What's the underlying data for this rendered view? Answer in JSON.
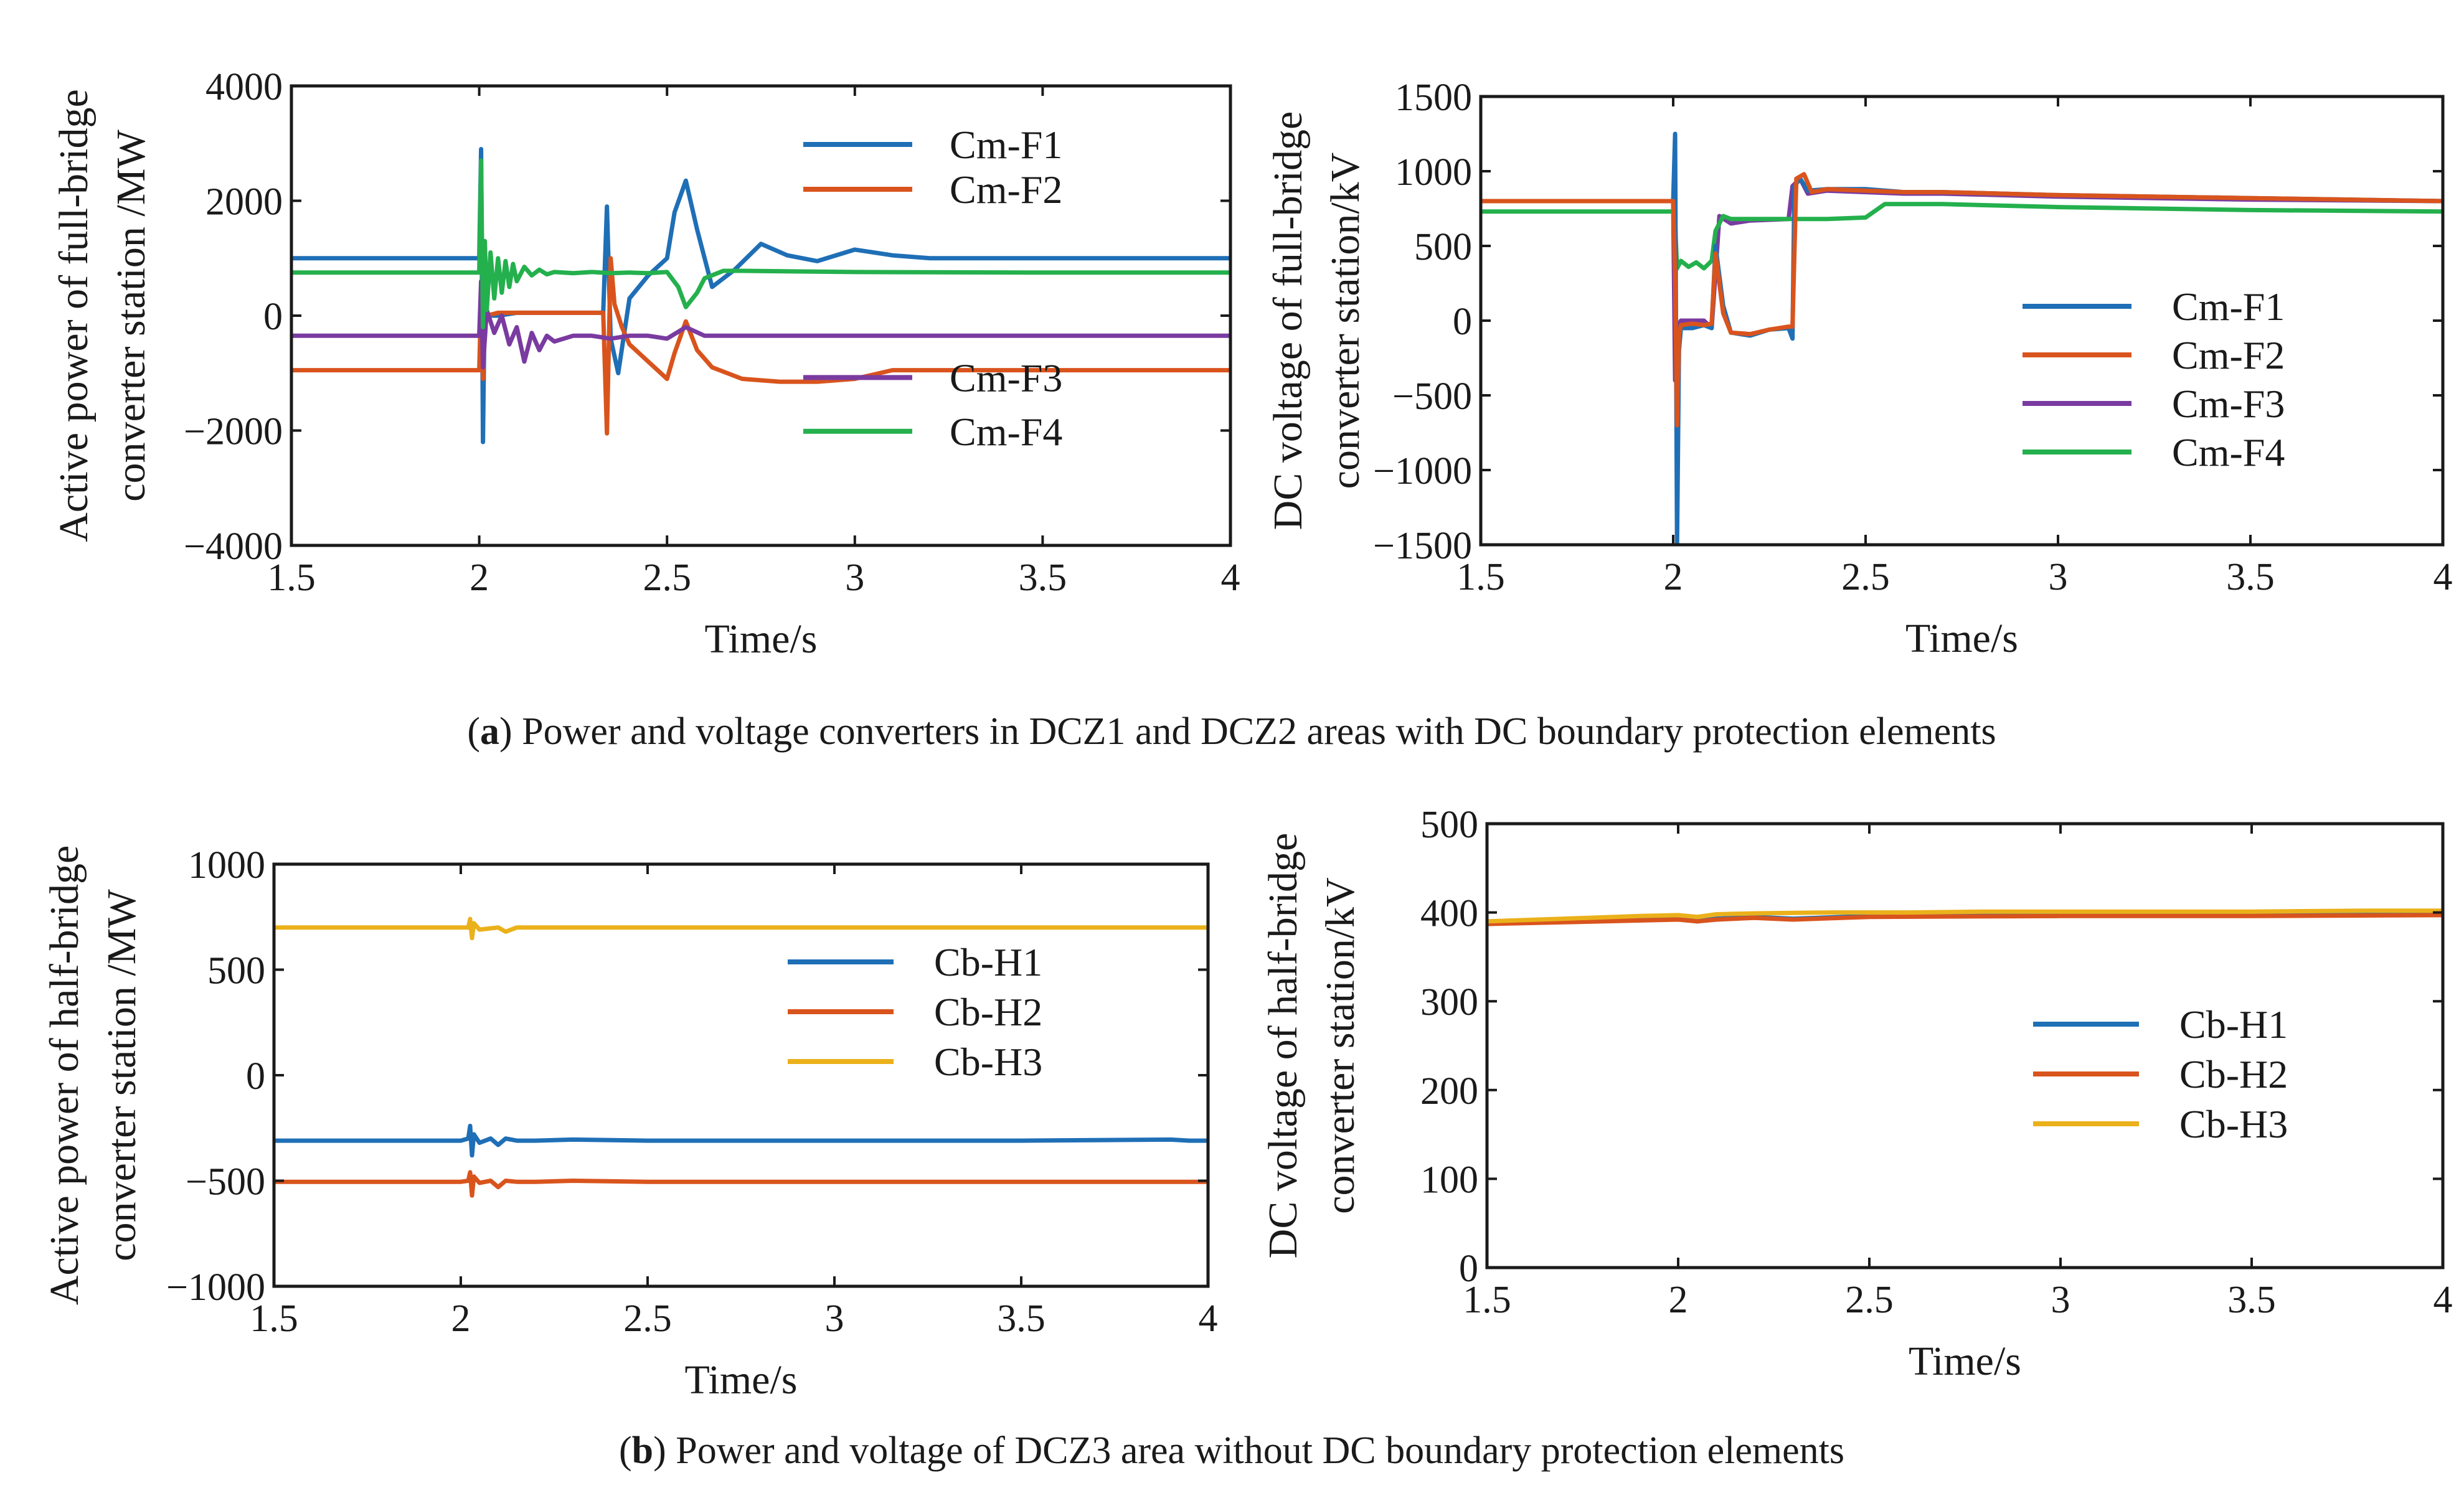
{
  "captions": {
    "a_letter": "a",
    "a_text": " Power and voltage converters in DCZ1 and DCZ2 areas with DC boundary protection elements",
    "b_letter": "b",
    "b_text": " Power and voltage of DCZ3 area without DC boundary protection elements"
  },
  "colors": {
    "blue": "#1f6fb6",
    "orange": "#d9541d",
    "yellow": "#ebb11b",
    "purple": "#7a3ba0",
    "green": "#24b04d"
  },
  "chart_data": [
    {
      "id": "a-left",
      "type": "line",
      "xlabel": "Time/s",
      "ylabel_line1": "Active power of full-bridge",
      "ylabel_line2": "converter station /MW",
      "xlim": [
        1.5,
        4
      ],
      "ylim": [
        -4000,
        4000
      ],
      "xticks": [
        "1.5",
        "2",
        "2.5",
        "3",
        "3.5",
        "4"
      ],
      "xtick_values": [
        1.5,
        2,
        2.5,
        3,
        3.5,
        4
      ],
      "yticks": [
        "−4000",
        "−2000",
        "0",
        "2000",
        "4000"
      ],
      "ytick_values": [
        -4000,
        -2000,
        0,
        2000,
        4000
      ],
      "legend": [
        {
          "label": "Cm-F1",
          "color": "#1f6fb6"
        },
        {
          "label": "Cm-F2",
          "color": "#d9541d"
        },
        {
          "label": "Cm-F3",
          "color": "#7a3ba0"
        },
        {
          "label": "Cm-F4",
          "color": "#24b04d"
        }
      ],
      "series": [
        {
          "name": "Cm-F1",
          "color": "#1f6fb6",
          "x": [
            1.5,
            2.0,
            2.005,
            2.01,
            2.015,
            2.02,
            2.05,
            2.1,
            2.2,
            2.3,
            2.33,
            2.34,
            2.35,
            2.37,
            2.4,
            2.45,
            2.5,
            2.52,
            2.55,
            2.58,
            2.62,
            2.68,
            2.75,
            2.82,
            2.9,
            3.0,
            3.1,
            3.2,
            3.5,
            4.0
          ],
          "y": [
            1000,
            1000,
            2900,
            -2200,
            500,
            0,
            0,
            50,
            50,
            50,
            50,
            1900,
            -400,
            -1000,
            300,
            700,
            1000,
            1800,
            2350,
            1500,
            500,
            800,
            1250,
            1050,
            950,
            1150,
            1050,
            1000,
            1000,
            1000
          ]
        },
        {
          "name": "Cm-F2",
          "color": "#d9541d",
          "x": [
            1.5,
            2.0,
            2.005,
            2.01,
            2.015,
            2.02,
            2.05,
            2.1,
            2.2,
            2.3,
            2.33,
            2.34,
            2.35,
            2.36,
            2.38,
            2.4,
            2.45,
            2.5,
            2.52,
            2.55,
            2.58,
            2.62,
            2.7,
            2.8,
            2.9,
            3.0,
            3.1,
            3.5,
            4.0
          ],
          "y": [
            -950,
            -950,
            300,
            -1100,
            400,
            0,
            50,
            50,
            50,
            50,
            50,
            -2050,
            1000,
            200,
            -200,
            -500,
            -800,
            -1100,
            -650,
            -100,
            -600,
            -900,
            -1100,
            -1150,
            -1150,
            -1100,
            -950,
            -950,
            -950
          ]
        },
        {
          "name": "Cm-F3",
          "color": "#7a3ba0",
          "x": [
            1.5,
            2.0,
            2.005,
            2.01,
            2.02,
            2.04,
            2.06,
            2.08,
            2.1,
            2.12,
            2.14,
            2.16,
            2.18,
            2.2,
            2.25,
            2.3,
            2.35,
            2.4,
            2.45,
            2.5,
            2.55,
            2.6,
            2.7,
            3.0,
            3.5,
            4.0
          ],
          "y": [
            -350,
            -350,
            600,
            -900,
            100,
            -300,
            0,
            -500,
            -200,
            -800,
            -300,
            -600,
            -350,
            -450,
            -350,
            -350,
            -400,
            -350,
            -350,
            -400,
            -200,
            -350,
            -350,
            -350,
            -350,
            -350
          ]
        },
        {
          "name": "Cm-F4",
          "color": "#24b04d",
          "x": [
            1.5,
            2.0,
            2.005,
            2.01,
            2.015,
            2.02,
            2.03,
            2.04,
            2.05,
            2.06,
            2.07,
            2.08,
            2.09,
            2.1,
            2.12,
            2.14,
            2.16,
            2.18,
            2.2,
            2.25,
            2.3,
            2.35,
            2.4,
            2.45,
            2.5,
            2.53,
            2.55,
            2.58,
            2.6,
            2.65,
            2.7,
            3.0,
            3.5,
            4.0
          ],
          "y": [
            750,
            750,
            2700,
            -200,
            1300,
            100,
            1100,
            300,
            1000,
            400,
            950,
            500,
            900,
            600,
            850,
            700,
            800,
            720,
            760,
            740,
            760,
            740,
            750,
            740,
            760,
            500,
            150,
            400,
            650,
            780,
            780,
            760,
            750,
            750
          ]
        }
      ]
    },
    {
      "id": "a-right",
      "type": "line",
      "xlabel": "Time/s",
      "ylabel_line1": "DC voltage of full-bridge",
      "ylabel_line2": "converter station/kV",
      "xlim": [
        1.5,
        4
      ],
      "ylim": [
        -1500,
        1500
      ],
      "xticks": [
        "1.5",
        "2",
        "2.5",
        "3",
        "3.5",
        "4"
      ],
      "xtick_values": [
        1.5,
        2,
        2.5,
        3,
        3.5,
        4
      ],
      "yticks": [
        "−1500",
        "−1000",
        "−500",
        "0",
        "500",
        "1000",
        "1500"
      ],
      "ytick_values": [
        -1500,
        -1000,
        -500,
        0,
        500,
        1000,
        1500
      ],
      "legend": [
        {
          "label": "Cm-F1",
          "color": "#1f6fb6"
        },
        {
          "label": "Cm-F2",
          "color": "#d9541d"
        },
        {
          "label": "Cm-F3",
          "color": "#7a3ba0"
        },
        {
          "label": "Cm-F4",
          "color": "#24b04d"
        }
      ],
      "series": [
        {
          "name": "Cm-F3",
          "color": "#7a3ba0",
          "x": [
            1.5,
            2.0,
            2.005,
            2.01,
            2.02,
            2.05,
            2.08,
            2.1,
            2.12,
            2.15,
            2.2,
            2.3,
            2.31,
            2.33,
            2.35,
            2.4,
            2.5,
            2.6,
            2.7,
            3.0,
            3.5,
            4.0
          ],
          "y": [
            800,
            800,
            -400,
            -50,
            0,
            0,
            0,
            -50,
            700,
            650,
            670,
            680,
            900,
            950,
            850,
            870,
            860,
            850,
            850,
            830,
            810,
            800
          ]
        },
        {
          "name": "Cm-F4",
          "color": "#24b04d",
          "x": [
            1.5,
            2.0,
            2.005,
            2.01,
            2.02,
            2.04,
            2.06,
            2.08,
            2.1,
            2.11,
            2.13,
            2.15,
            2.2,
            2.3,
            2.4,
            2.5,
            2.55,
            2.6,
            2.7,
            3.0,
            3.5,
            4.0
          ],
          "y": [
            730,
            730,
            650,
            350,
            400,
            360,
            390,
            350,
            400,
            600,
            700,
            680,
            680,
            680,
            680,
            690,
            780,
            780,
            780,
            760,
            740,
            730
          ]
        },
        {
          "name": "Cm-F1",
          "color": "#1f6fb6",
          "x": [
            1.5,
            2.0,
            2.005,
            2.01,
            2.015,
            2.02,
            2.05,
            2.08,
            2.1,
            2.11,
            2.13,
            2.15,
            2.2,
            2.25,
            2.3,
            2.31,
            2.315,
            2.33,
            2.35,
            2.4,
            2.5,
            2.6,
            2.7,
            3.0,
            3.5,
            4.0
          ],
          "y": [
            800,
            800,
            1250,
            -1500,
            -200,
            -50,
            -50,
            -30,
            -50,
            500,
            100,
            -80,
            -100,
            -60,
            -50,
            -120,
            900,
            950,
            870,
            880,
            880,
            860,
            860,
            840,
            820,
            800
          ]
        },
        {
          "name": "Cm-F2",
          "color": "#d9541d",
          "x": [
            1.5,
            2.0,
            2.005,
            2.01,
            2.015,
            2.02,
            2.05,
            2.08,
            2.1,
            2.11,
            2.13,
            2.15,
            2.2,
            2.25,
            2.3,
            2.31,
            2.32,
            2.34,
            2.36,
            2.4,
            2.5,
            2.6,
            2.7,
            3.0,
            3.5,
            4.0
          ],
          "y": [
            800,
            800,
            300,
            -700,
            -100,
            -30,
            -20,
            -30,
            -20,
            450,
            50,
            -80,
            -90,
            -60,
            -40,
            -40,
            950,
            980,
            860,
            880,
            870,
            860,
            860,
            840,
            820,
            800
          ]
        }
      ]
    },
    {
      "id": "b-left",
      "type": "line",
      "xlabel": "Time/s",
      "ylabel_line1": "Active power of half-bridge",
      "ylabel_line2": "converter station /MW",
      "xlim": [
        1.5,
        4
      ],
      "ylim": [
        -1000,
        1000
      ],
      "xticks": [
        "1.5",
        "2",
        "2.5",
        "3",
        "3.5",
        "4"
      ],
      "xtick_values": [
        1.5,
        2,
        2.5,
        3,
        3.5,
        4
      ],
      "yticks": [
        "−1000",
        "−500",
        "0",
        "500",
        "1000"
      ],
      "ytick_values": [
        -1000,
        -500,
        0,
        500,
        1000
      ],
      "legend": [
        {
          "label": "Cb-H1",
          "color": "#1f6fb6"
        },
        {
          "label": "Cb-H2",
          "color": "#d9541d"
        },
        {
          "label": "Cb-H3",
          "color": "#ebb11b"
        }
      ],
      "series": [
        {
          "name": "Cb-H3",
          "color": "#ebb11b",
          "x": [
            1.5,
            2.0,
            2.02,
            2.025,
            2.03,
            2.035,
            2.05,
            2.1,
            2.12,
            2.15,
            2.5,
            3.0,
            3.5,
            4.0
          ],
          "y": [
            700,
            700,
            700,
            740,
            650,
            720,
            690,
            700,
            680,
            700,
            700,
            700,
            700,
            700
          ]
        },
        {
          "name": "Cb-H1",
          "color": "#1f6fb6",
          "x": [
            1.5,
            2.0,
            2.02,
            2.025,
            2.03,
            2.035,
            2.05,
            2.08,
            2.1,
            2.12,
            2.15,
            2.2,
            2.3,
            2.5,
            3.0,
            3.5,
            3.9,
            3.95,
            4.0
          ],
          "y": [
            -310,
            -310,
            -300,
            -240,
            -380,
            -280,
            -320,
            -300,
            -330,
            -300,
            -310,
            -310,
            -305,
            -310,
            -310,
            -310,
            -305,
            -310,
            -310
          ]
        },
        {
          "name": "Cb-H2",
          "color": "#d9541d",
          "x": [
            1.5,
            2.0,
            2.02,
            2.025,
            2.03,
            2.035,
            2.05,
            2.08,
            2.1,
            2.12,
            2.15,
            2.2,
            2.3,
            2.5,
            3.0,
            3.5,
            4.0
          ],
          "y": [
            -505,
            -505,
            -500,
            -460,
            -570,
            -480,
            -510,
            -500,
            -530,
            -500,
            -505,
            -505,
            -500,
            -505,
            -505,
            -505,
            -505
          ]
        }
      ]
    },
    {
      "id": "b-right",
      "type": "line",
      "xlabel": "Time/s",
      "ylabel_line1": "DC voltage of half-bridge",
      "ylabel_line2": "converter station/kV",
      "xlim": [
        1.5,
        4
      ],
      "ylim": [
        0,
        500
      ],
      "xticks": [
        "1.5",
        "2",
        "2.5",
        "3",
        "3.5",
        "4"
      ],
      "xtick_values": [
        1.5,
        2,
        2.5,
        3,
        3.5,
        4
      ],
      "yticks": [
        "0",
        "100",
        "200",
        "300",
        "400",
        "500"
      ],
      "ytick_values": [
        0,
        100,
        200,
        300,
        400,
        500
      ],
      "legend": [
        {
          "label": "Cb-H1",
          "color": "#1f6fb6"
        },
        {
          "label": "Cb-H2",
          "color": "#d9541d"
        },
        {
          "label": "Cb-H3",
          "color": "#ebb11b"
        }
      ],
      "series": [
        {
          "name": "Cb-H1",
          "color": "#1f6fb6",
          "x": [
            1.5,
            1.8,
            2.0,
            2.05,
            2.1,
            2.2,
            2.3,
            2.5,
            3.0,
            3.5,
            4.0
          ],
          "y": [
            388,
            392,
            393,
            390,
            393,
            395,
            393,
            396,
            397,
            398,
            398
          ]
        },
        {
          "name": "Cb-H2",
          "color": "#d9541d",
          "x": [
            1.5,
            1.8,
            2.0,
            2.05,
            2.1,
            2.2,
            2.3,
            2.5,
            3.0,
            3.5,
            4.0
          ],
          "y": [
            387,
            390,
            392,
            390,
            392,
            394,
            392,
            395,
            396,
            396,
            397
          ]
        },
        {
          "name": "Cb-H3",
          "color": "#ebb11b",
          "x": [
            1.5,
            1.7,
            1.9,
            2.0,
            2.05,
            2.1,
            2.2,
            2.4,
            2.6,
            2.8,
            3.0,
            3.2,
            3.5,
            3.8,
            4.0
          ],
          "y": [
            390,
            393,
            396,
            397,
            395,
            398,
            399,
            400,
            400,
            401,
            401,
            401,
            401,
            402,
            402
          ]
        }
      ]
    }
  ]
}
